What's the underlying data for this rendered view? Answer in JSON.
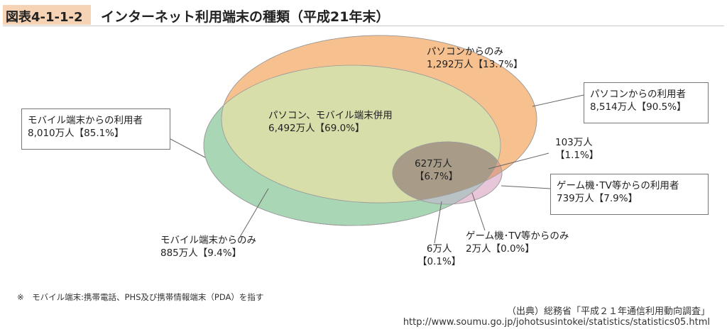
{
  "header": {
    "figure_number": "図表4-1-1-2",
    "title": "インターネット利用端末の種類（平成21年末）"
  },
  "colors": {
    "pc": "#f6c08f",
    "mobile": "#a9d6b5",
    "overlap_pc_mobile": "#d7deaa",
    "game": "#e8c6da",
    "triple": "#a89c88",
    "header_badge": "#f6d3b5"
  },
  "labels": {
    "pc_only": {
      "line1": "パソコンからのみ",
      "line2": "1,292万人【13.7%】"
    },
    "pc_mobile": {
      "line1": "パソコン、モバイル端末併用",
      "line2": "6,492万人【69.0%】"
    },
    "triple": {
      "line1": "627万人",
      "line2": "【6.7%】"
    },
    "pc_game": {
      "line1": "103万人",
      "line2": "【1.1%】"
    },
    "mobile_game": {
      "line1": "6万人",
      "line2": "【0.1%】"
    },
    "game_only": {
      "line1": "ゲーム機･TV等からのみ",
      "line2": "2万人【0.0%】"
    },
    "mobile_only": {
      "line1": "モバイル端末からのみ",
      "line2": "885万人【9.4%】"
    }
  },
  "boxes": {
    "pc_users": {
      "line1": "パソコンからの利用者",
      "line2": "8,514万人【90.5%】"
    },
    "mobile_users": {
      "line1": "モバイル端末からの利用者",
      "line2": "8,010万人【85.1%】"
    },
    "game_users": {
      "line1": "ゲーム機･TV等からの利用者",
      "line2": "739万人【7.9%】"
    }
  },
  "footnote": "※　モバイル端末:携帯電話、PHS及び携帯情報端末（PDA）を指す",
  "source": {
    "line1": "（出典）総務省「平成２１年通信利用動向調査」",
    "line2": "http://www.soumu.go.jp/johotsusintokei/statistics/statistics05.html"
  }
}
